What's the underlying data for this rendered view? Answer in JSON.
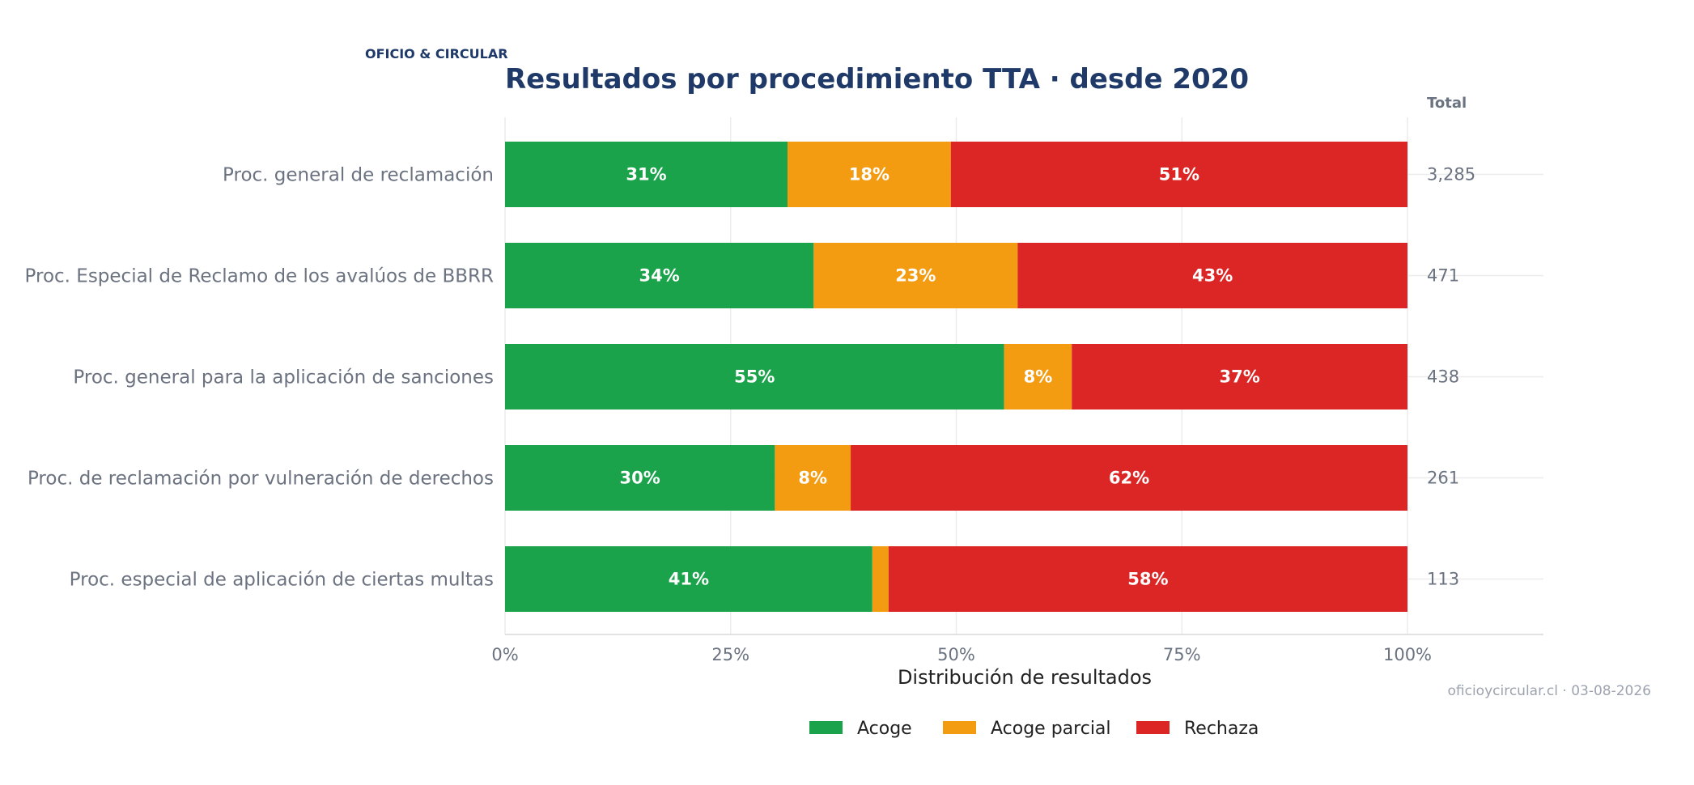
{
  "brand": "OFICIO & CIRCULAR",
  "source": "oficioycircular.cl · 03-08-2026",
  "colors": {
    "Acoge": "#1aa34a",
    "Acoge parcial": "#f39c12",
    "Rechaza": "#dc2626"
  },
  "chart_data": {
    "type": "bar",
    "orientation": "horizontal",
    "stacked": "percent",
    "title": "Resultados por procedimiento TTA · desde 2020",
    "xlabel": "Distribución de resultados",
    "ylabel": "",
    "xlim": [
      0,
      100
    ],
    "xticks": [
      "0%",
      "25%",
      "50%",
      "75%",
      "100%"
    ],
    "grid": true,
    "legend_position": "bottom",
    "totals_header": "Total",
    "categories": [
      "Proc. general de reclamación",
      "Proc. Especial de Reclamo de los avalúos de BBRR",
      "Proc. general para la aplicación de sanciones",
      "Proc. de reclamación por vulneración de derechos",
      "Proc. especial de aplicación de ciertas multas"
    ],
    "totals": [
      "3,285",
      "471",
      "438",
      "261",
      "113"
    ],
    "series": [
      {
        "name": "Acoge",
        "values": [
          31.3,
          34.2,
          55.3,
          29.9,
          40.7
        ],
        "labels": [
          "31%",
          "34%",
          "55%",
          "30%",
          "41%"
        ]
      },
      {
        "name": "Acoge parcial",
        "values": [
          18.1,
          22.6,
          7.5,
          8.4,
          1.8
        ],
        "labels": [
          "18%",
          "23%",
          "8%",
          "8%",
          ""
        ]
      },
      {
        "name": "Rechaza",
        "values": [
          50.6,
          43.2,
          37.2,
          61.7,
          57.5
        ],
        "labels": [
          "51%",
          "43%",
          "37%",
          "62%",
          "58%"
        ]
      }
    ]
  }
}
